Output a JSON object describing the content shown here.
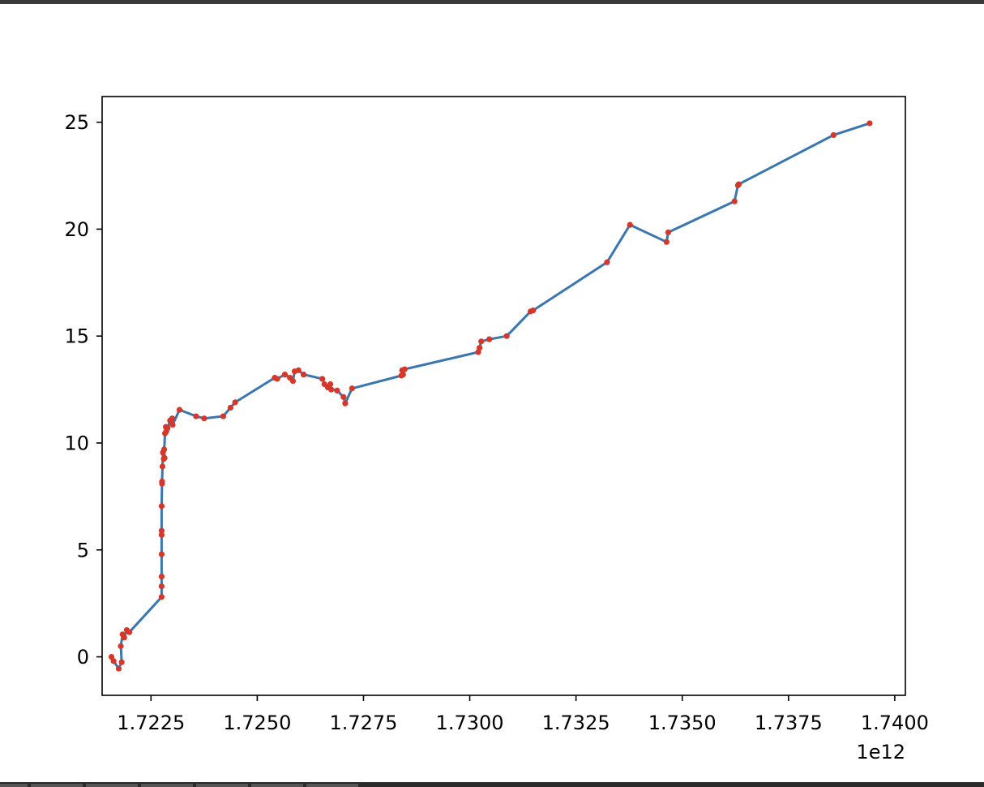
{
  "chart_data": {
    "type": "line",
    "title": "",
    "xlabel": "",
    "ylabel": "",
    "x_offset_label": "1e12",
    "xlim": [
      1.72135,
      1.74025
    ],
    "ylim": [
      -1.8,
      26.2
    ],
    "x_ticks": [
      1.7225,
      1.725,
      1.7275,
      1.73,
      1.7325,
      1.735,
      1.7375,
      1.74
    ],
    "x_tick_labels": [
      "1.7225",
      "1.7250",
      "1.7275",
      "1.7300",
      "1.7325",
      "1.7350",
      "1.7375",
      "1.7400"
    ],
    "y_ticks": [
      0,
      5,
      10,
      15,
      20,
      25
    ],
    "y_tick_labels": [
      "0",
      "5",
      "10",
      "15",
      "20",
      "25"
    ],
    "grid": false,
    "line_color": "#3a76b0",
    "marker_color": "#d6372b",
    "series": [
      {
        "x": [
          1.72157,
          1.72162,
          1.72174,
          1.72181,
          1.72179,
          1.72183,
          1.72187,
          1.72193,
          1.72199,
          1.72275,
          1.72275,
          1.72275,
          1.72275,
          1.72275,
          1.72275,
          1.72275,
          1.72276,
          1.72276,
          1.72277,
          1.72278,
          1.7228,
          1.72282,
          1.72281,
          1.72283,
          1.72285,
          1.72286,
          1.72289,
          1.72295,
          1.723,
          1.72301,
          1.72317,
          1.72356,
          1.72375,
          1.7242,
          1.72437,
          1.72448,
          1.72541,
          1.72547,
          1.72565,
          1.72577,
          1.72584,
          1.72588,
          1.72597,
          1.72609,
          1.72653,
          1.72658,
          1.72666,
          1.72672,
          1.72674,
          1.72688,
          1.72703,
          1.72707,
          1.72723,
          1.72839,
          1.72841,
          1.72843,
          1.72847,
          1.7302,
          1.73023,
          1.73027,
          1.73046,
          1.73087,
          1.73143,
          1.73149,
          1.73323,
          1.73377,
          1.73463,
          1.73467,
          1.73623,
          1.73631,
          1.73633,
          1.73856,
          1.73941
        ],
        "y": [
          0.0,
          -0.2,
          -0.55,
          -0.25,
          0.5,
          1.05,
          0.9,
          1.25,
          1.15,
          2.8,
          3.3,
          3.75,
          4.8,
          5.7,
          5.9,
          7.05,
          8.1,
          8.2,
          8.9,
          9.55,
          9.25,
          9.3,
          9.7,
          10.45,
          10.75,
          10.55,
          10.7,
          11.05,
          11.15,
          10.85,
          11.55,
          11.25,
          11.15,
          11.25,
          11.65,
          11.9,
          13.05,
          13.0,
          13.2,
          13.05,
          12.9,
          13.35,
          13.4,
          13.2,
          13.0,
          12.75,
          12.6,
          12.75,
          12.5,
          12.45,
          12.15,
          11.85,
          12.55,
          13.15,
          13.4,
          13.2,
          13.45,
          14.25,
          14.45,
          14.75,
          14.85,
          15.0,
          16.15,
          16.2,
          18.45,
          20.2,
          19.4,
          19.85,
          21.3,
          22.05,
          22.1,
          24.4,
          24.95
        ]
      }
    ]
  }
}
